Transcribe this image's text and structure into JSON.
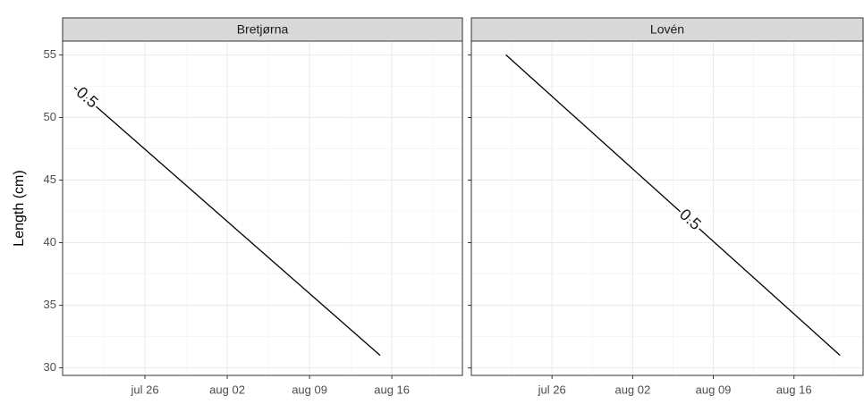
{
  "chart_data": [
    {
      "type": "contour",
      "title": "Bretjørna",
      "ylabel": "Length (cm)",
      "xlim": [
        "jul 19",
        "aug 22"
      ],
      "xticks": [
        "jul 26",
        "aug 02",
        "aug 09",
        "aug 16"
      ],
      "ylim": [
        29.4,
        56.1
      ],
      "yticks": [
        30,
        35,
        40,
        45,
        50,
        55
      ],
      "grid": true,
      "contours": [
        {
          "level": 0.5,
          "color": "#000000",
          "x": [
            "jul 20",
            "aug 15"
          ],
          "y": [
            52.4,
            31
          ]
        }
      ]
    },
    {
      "type": "contour",
      "title": "Lovén",
      "xlim": [
        "jul 19",
        "aug 22"
      ],
      "xticks": [
        "jul 26",
        "aug 02",
        "aug 09",
        "aug 16"
      ],
      "ylim": [
        29.4,
        56.1
      ],
      "yticks": [
        30,
        35,
        40,
        45,
        50,
        55
      ],
      "grid": true,
      "contours": [
        {
          "level": 0.5,
          "color": "#000000",
          "x": [
            "jul 22",
            "aug 20"
          ],
          "y": [
            55,
            31
          ]
        }
      ]
    }
  ]
}
